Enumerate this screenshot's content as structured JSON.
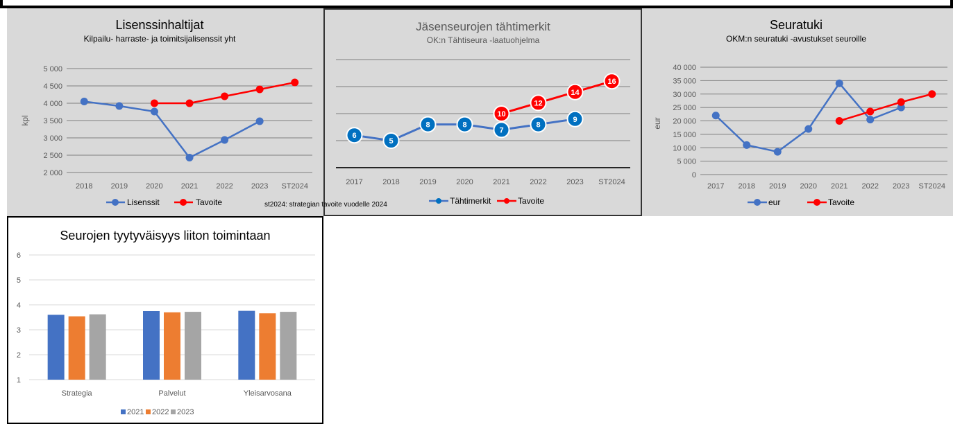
{
  "colors": {
    "blue": "#4472C4",
    "blue_dark": "#0070C0",
    "red": "#FF0000",
    "orange": "#ED7D31",
    "gray": "#A5A5A5",
    "panel_bg": "#D9D9D9"
  },
  "note": "st2024: strategian tavoite vuodelle 2024",
  "chart_data": [
    {
      "type": "line",
      "title": "Lisenssinhaltijat",
      "subtitle": "Kilpailu- harraste- ja toimitsijalisenssit yht",
      "ylabel": "kpl",
      "x": [
        "2018",
        "2019",
        "2020",
        "2021",
        "2022",
        "2023",
        "ST2024"
      ],
      "ylim": [
        2000,
        5000
      ],
      "yticks": [
        "2 000",
        "2 500",
        "3 000",
        "3 500",
        "4 000",
        "4 500",
        "5 000"
      ],
      "ytick_values": [
        2000,
        2500,
        3000,
        3500,
        4000,
        4500,
        5000
      ],
      "series": [
        {
          "name": "Lisenssit",
          "values": [
            4050,
            3920,
            3760,
            2430,
            2940,
            3480,
            null
          ]
        },
        {
          "name": "Tavoite",
          "values": [
            null,
            null,
            4000,
            4000,
            4200,
            4400,
            4600
          ]
        }
      ],
      "legend": "bottom",
      "grid": true
    },
    {
      "type": "line",
      "title": "Jäsenseurojen tähtimerkit",
      "subtitle": "OK:n Tähtiseura -laatuohjelma",
      "x": [
        "2017",
        "2018",
        "2019",
        "2020",
        "2021",
        "2022",
        "2023",
        "ST2024"
      ],
      "ylim": [
        0,
        20
      ],
      "series": [
        {
          "name": "Tähtimerkit",
          "values": [
            6,
            5,
            8,
            8,
            7,
            8,
            9,
            null
          ]
        },
        {
          "name": "Tavoite",
          "values": [
            null,
            null,
            null,
            null,
            10,
            12,
            14,
            16
          ]
        }
      ],
      "data_labels": true,
      "legend": "bottom",
      "grid": true
    },
    {
      "type": "line",
      "title": "Seuratuki",
      "subtitle": "OKM:n seuratuki -avustukset seuroille",
      "ylabel": "eur",
      "x": [
        "2017",
        "2018",
        "2019",
        "2020",
        "2021",
        "2022",
        "2023",
        "ST2024"
      ],
      "ylim": [
        0,
        40000
      ],
      "yticks": [
        "0",
        "5 000",
        "10 000",
        "15 000",
        "20 000",
        "25 000",
        "30 000",
        "35 000",
        "40 000"
      ],
      "ytick_values": [
        0,
        5000,
        10000,
        15000,
        20000,
        25000,
        30000,
        35000,
        40000
      ],
      "series": [
        {
          "name": "eur",
          "values": [
            22000,
            11000,
            8500,
            17000,
            34000,
            20500,
            25000,
            null
          ]
        },
        {
          "name": "Tavoite",
          "values": [
            null,
            null,
            null,
            null,
            20000,
            23500,
            27000,
            30000
          ]
        }
      ],
      "legend": "bottom",
      "grid": true
    },
    {
      "type": "bar",
      "title": "Seurojen tyytyväisyys liiton toimintaan",
      "categories": [
        "Strategia",
        "Palvelut",
        "Yleisarvosana"
      ],
      "ylim": [
        1,
        6
      ],
      "yticks": [
        "1",
        "2",
        "3",
        "4",
        "5",
        "6"
      ],
      "ytick_values": [
        1,
        2,
        3,
        4,
        5,
        6
      ],
      "series": [
        {
          "name": "2021",
          "values": [
            3.6,
            3.75,
            3.76
          ]
        },
        {
          "name": "2022",
          "values": [
            3.54,
            3.7,
            3.66
          ]
        },
        {
          "name": "2023",
          "values": [
            3.62,
            3.72,
            3.72
          ]
        }
      ],
      "legend": "bottom",
      "grid": true
    }
  ]
}
